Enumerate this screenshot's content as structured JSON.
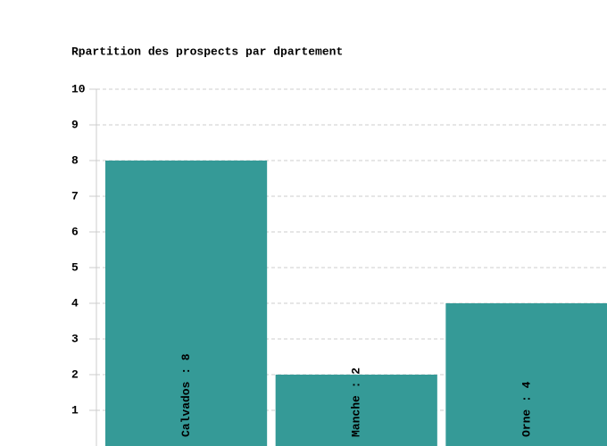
{
  "chart_data": {
    "type": "bar",
    "title": "Rpartition des prospects par dpartement",
    "values": [
      8,
      2,
      4
    ],
    "value_labels": [
      "Calvados : 8",
      "Manche : 2",
      "Orne : 4"
    ],
    "color": "#359a97",
    "ylim": [
      0,
      10
    ],
    "yticks": [
      1,
      2,
      3,
      4,
      5,
      6,
      7,
      8,
      9,
      10
    ],
    "grid": true
  }
}
